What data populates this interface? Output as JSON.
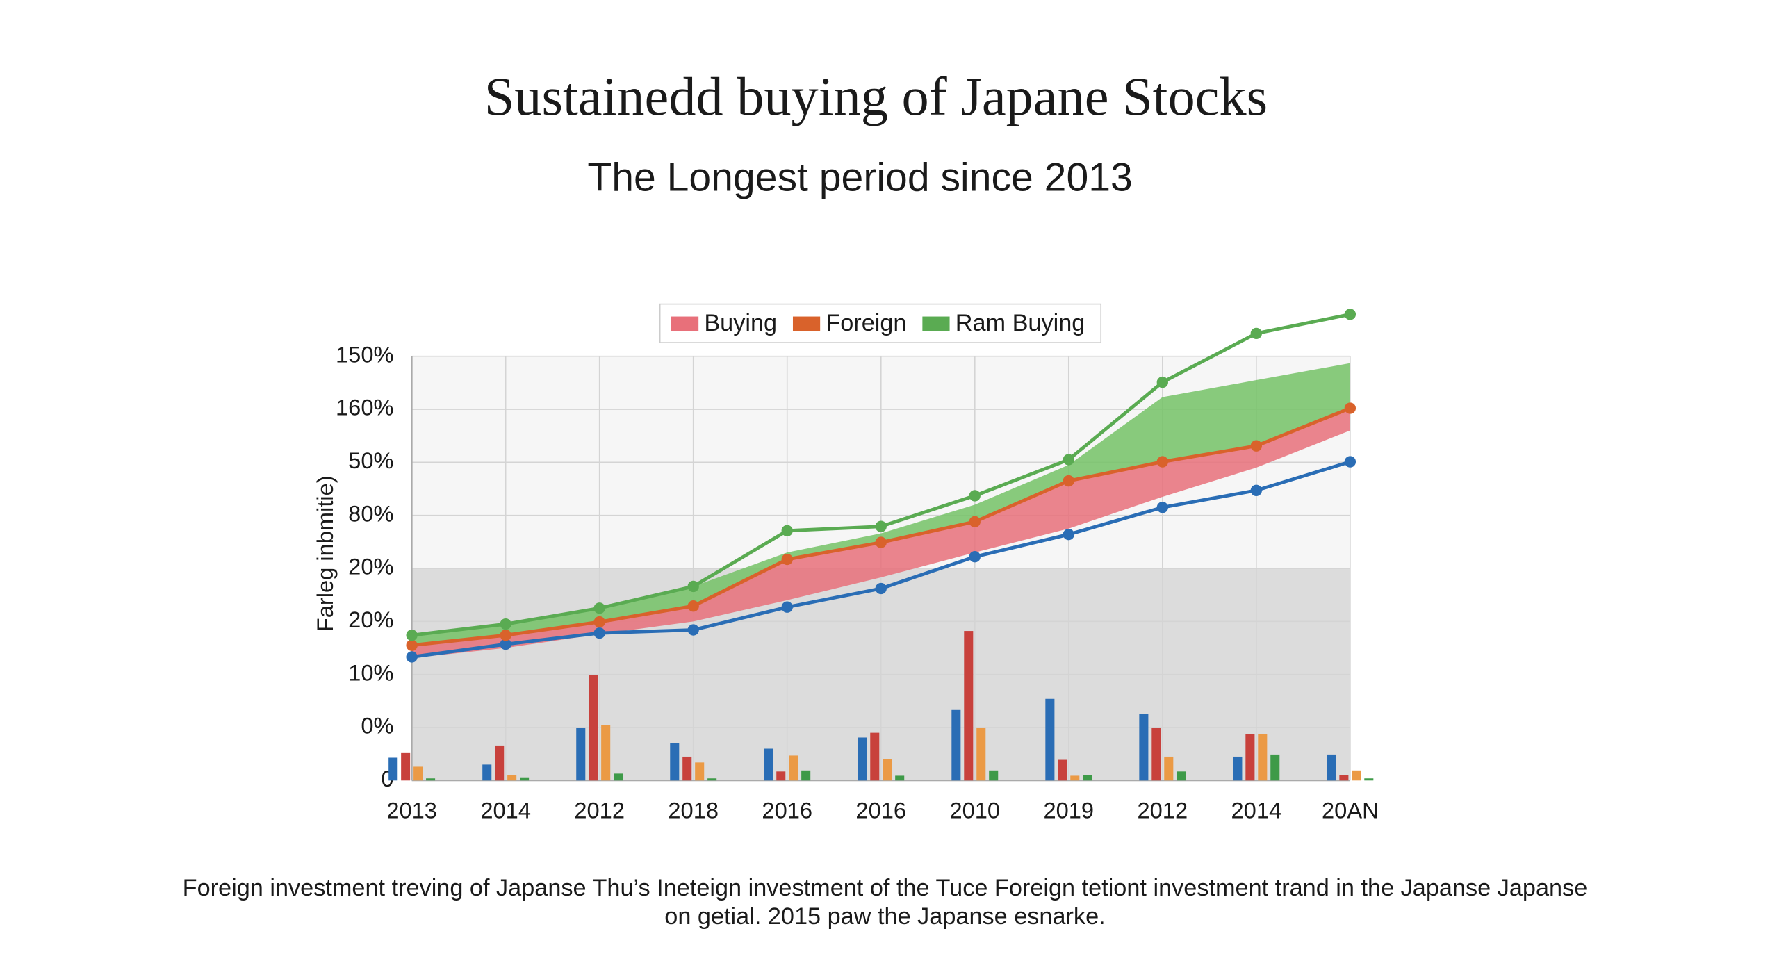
{
  "chart_data": {
    "type": "line",
    "title": "Sustainedd buying of Japane Stocks",
    "subtitle": "The Longest period since 2013",
    "y_label": "Farleg inbmitie)",
    "caption": [
      "Foreign investment treving of Japanse Thu’s Ineteign investment of the Tuce Foreign tetiont investment trand in the Japanse Japanse",
      "on getial. 2015 paw the Japanse esnarke."
    ],
    "categories": [
      "2013",
      "2014",
      "2012",
      "2018",
      "2016",
      "2016",
      "2010",
      "2019",
      "2012",
      "2014",
      "20AN"
    ],
    "ylim": [
      0,
      8
    ],
    "yticks": [
      {
        "value": 0,
        "label": "0"
      },
      {
        "value": 1,
        "label": "0%"
      },
      {
        "value": 2,
        "label": "10%"
      },
      {
        "value": 3,
        "label": "20%"
      },
      {
        "value": 4,
        "label": "20%"
      },
      {
        "value": 5,
        "label": "80%"
      },
      {
        "value": 6,
        "label": "50%"
      },
      {
        "value": 7,
        "label": "160%"
      },
      {
        "value": 8,
        "label": "150%"
      }
    ],
    "grid": true,
    "legend": "top",
    "series": [
      {
        "type": "area",
        "color": "#74c266",
        "values": [
          2.74,
          2.95,
          3.25,
          3.66,
          4.3,
          4.66,
          5.2,
          5.95,
          7.23,
          7.55,
          7.87
        ]
      },
      {
        "name": "Buying",
        "type": "area",
        "color": "#e8707a",
        "values": [
          2.31,
          2.5,
          2.76,
          3.0,
          3.4,
          3.83,
          4.3,
          4.75,
          5.35,
          5.9,
          6.6
        ]
      },
      {
        "type": "bar",
        "color": "#2a6db5",
        "values": [
          0.43,
          0.3,
          1.0,
          0.71,
          0.6,
          0.81,
          1.33,
          1.54,
          1.26,
          0.45,
          0.49
        ]
      },
      {
        "type": "bar",
        "color": "#c8413c",
        "values": [
          0.53,
          0.66,
          1.99,
          0.45,
          0.17,
          0.9,
          2.82,
          0.39,
          1.0,
          0.88,
          0.1
        ]
      },
      {
        "type": "bar",
        "color": "#eb9a45",
        "values": [
          0.26,
          0.1,
          1.05,
          0.34,
          0.47,
          0.41,
          1.0,
          0.09,
          0.45,
          0.88,
          0.19
        ]
      },
      {
        "type": "bar",
        "color": "#3e9a48",
        "values": [
          0.04,
          0.06,
          0.13,
          0.04,
          0.19,
          0.09,
          0.19,
          0.1,
          0.17,
          0.49,
          0.04
        ]
      },
      {
        "type": "line",
        "color": "#2a6db5",
        "values": [
          2.33,
          2.57,
          2.78,
          2.84,
          3.27,
          3.62,
          4.22,
          4.64,
          5.15,
          5.47,
          6.01
        ]
      },
      {
        "name": "Foreign",
        "type": "line",
        "color": "#d9622b",
        "values": [
          2.55,
          2.74,
          2.99,
          3.29,
          4.17,
          4.49,
          4.88,
          5.65,
          6.01,
          6.31,
          7.02
        ]
      },
      {
        "name": "Ram Buying",
        "type": "line",
        "color": "#5aab52",
        "values": [
          2.74,
          2.95,
          3.25,
          3.66,
          4.71,
          4.79,
          5.37,
          6.05,
          7.51,
          8.43,
          8.79
        ]
      }
    ]
  }
}
